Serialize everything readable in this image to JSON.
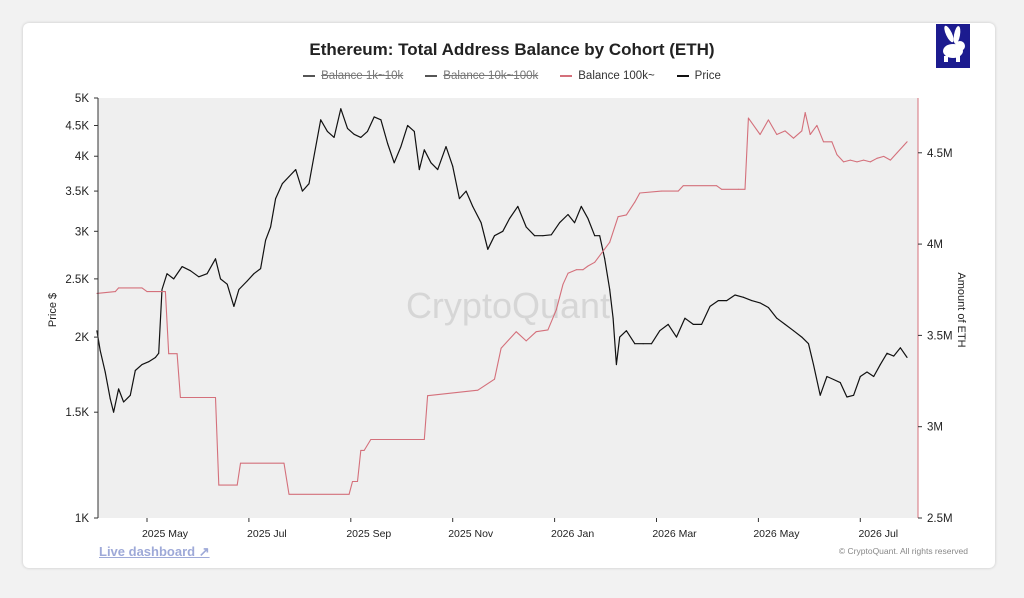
{
  "chart_data": {
    "type": "line",
    "title": "Ethereum: Total Address Balance by Cohort (ETH)",
    "legend": [
      {
        "label": "Balance 1k~10k",
        "color": "#555555",
        "hidden": true
      },
      {
        "label": "Balance 10k~100k",
        "color": "#555555",
        "hidden": true
      },
      {
        "label": "Balance 100k~",
        "color": "#d4707b",
        "hidden": false
      },
      {
        "label": "Price",
        "color": "#111111",
        "hidden": false
      }
    ],
    "watermark": "CryptoQuant",
    "x_axis": {
      "ticks": [
        "2025 May",
        "2025 Jul",
        "2025 Sep",
        "2025 Nov",
        "2026 Jan",
        "2026 Mar",
        "2026 May",
        "2026 Jul"
      ],
      "range": [
        "2025-04-01",
        "2026-07-31"
      ]
    },
    "y_left": {
      "label": "Price $",
      "scale": "log",
      "range": [
        1000,
        5000
      ],
      "ticks": [
        {
          "value": 1000,
          "label": "1K"
        },
        {
          "value": 1500,
          "label": "1.5K"
        },
        {
          "value": 2000,
          "label": "2K"
        },
        {
          "value": 2500,
          "label": "2.5K"
        },
        {
          "value": 3000,
          "label": "3K"
        },
        {
          "value": 3500,
          "label": "3.5K"
        },
        {
          "value": 4000,
          "label": "4K"
        },
        {
          "value": 4500,
          "label": "4.5K"
        },
        {
          "value": 5000,
          "label": "5K"
        }
      ]
    },
    "y_right": {
      "label": "Amount of ETH",
      "scale": "linear",
      "range": [
        2500000,
        4800000
      ],
      "ticks": [
        {
          "value": 2500000,
          "label": "2.5M"
        },
        {
          "value": 3000000,
          "label": "3M"
        },
        {
          "value": 3500000,
          "label": "3.5M"
        },
        {
          "value": 4000000,
          "label": "4M"
        },
        {
          "value": 4500000,
          "label": "4.5M"
        }
      ]
    },
    "series": [
      {
        "name": "Price",
        "axis": "left",
        "color": "#111111",
        "points": [
          [
            "2025-04-01",
            2050
          ],
          [
            "2025-04-03",
            1900
          ],
          [
            "2025-04-06",
            1750
          ],
          [
            "2025-04-09",
            1580
          ],
          [
            "2025-04-11",
            1500
          ],
          [
            "2025-04-14",
            1640
          ],
          [
            "2025-04-17",
            1560
          ],
          [
            "2025-04-21",
            1600
          ],
          [
            "2025-04-24",
            1760
          ],
          [
            "2025-04-28",
            1800
          ],
          [
            "2025-05-02",
            1820
          ],
          [
            "2025-05-06",
            1850
          ],
          [
            "2025-05-08",
            1880
          ],
          [
            "2025-05-10",
            2400
          ],
          [
            "2025-05-13",
            2550
          ],
          [
            "2025-05-17",
            2500
          ],
          [
            "2025-05-22",
            2620
          ],
          [
            "2025-05-27",
            2580
          ],
          [
            "2025-06-01",
            2520
          ],
          [
            "2025-06-06",
            2550
          ],
          [
            "2025-06-11",
            2700
          ],
          [
            "2025-06-14",
            2500
          ],
          [
            "2025-06-18",
            2450
          ],
          [
            "2025-06-22",
            2250
          ],
          [
            "2025-06-25",
            2400
          ],
          [
            "2025-06-30",
            2480
          ],
          [
            "2025-07-04",
            2550
          ],
          [
            "2025-07-08",
            2600
          ],
          [
            "2025-07-11",
            2900
          ],
          [
            "2025-07-14",
            3050
          ],
          [
            "2025-07-17",
            3400
          ],
          [
            "2025-07-21",
            3600
          ],
          [
            "2025-07-25",
            3700
          ],
          [
            "2025-07-29",
            3800
          ],
          [
            "2025-08-02",
            3500
          ],
          [
            "2025-08-06",
            3600
          ],
          [
            "2025-08-09",
            4000
          ],
          [
            "2025-08-13",
            4600
          ],
          [
            "2025-08-17",
            4400
          ],
          [
            "2025-08-21",
            4300
          ],
          [
            "2025-08-25",
            4800
          ],
          [
            "2025-08-29",
            4450
          ],
          [
            "2025-09-02",
            4350
          ],
          [
            "2025-09-06",
            4300
          ],
          [
            "2025-09-10",
            4400
          ],
          [
            "2025-09-14",
            4650
          ],
          [
            "2025-09-18",
            4600
          ],
          [
            "2025-09-22",
            4200
          ],
          [
            "2025-09-26",
            3900
          ],
          [
            "2025-09-30",
            4150
          ],
          [
            "2025-10-04",
            4500
          ],
          [
            "2025-10-08",
            4400
          ],
          [
            "2025-10-11",
            3800
          ],
          [
            "2025-10-14",
            4100
          ],
          [
            "2025-10-18",
            3900
          ],
          [
            "2025-10-22",
            3800
          ],
          [
            "2025-10-27",
            4150
          ],
          [
            "2025-10-31",
            3850
          ],
          [
            "2025-11-04",
            3400
          ],
          [
            "2025-11-08",
            3500
          ],
          [
            "2025-11-12",
            3300
          ],
          [
            "2025-11-17",
            3100
          ],
          [
            "2025-11-21",
            2800
          ],
          [
            "2025-11-25",
            2950
          ],
          [
            "2025-11-30",
            3000
          ],
          [
            "2025-12-04",
            3150
          ],
          [
            "2025-12-09",
            3300
          ],
          [
            "2025-12-14",
            3050
          ],
          [
            "2025-12-19",
            2950
          ],
          [
            "2025-12-24",
            2950
          ],
          [
            "2025-12-29",
            2960
          ],
          [
            "2026-01-03",
            3100
          ],
          [
            "2026-01-08",
            3200
          ],
          [
            "2026-01-12",
            3100
          ],
          [
            "2026-01-16",
            3300
          ],
          [
            "2026-01-20",
            3150
          ],
          [
            "2026-01-24",
            2950
          ],
          [
            "2026-01-27",
            2950
          ],
          [
            "2026-01-30",
            2700
          ],
          [
            "2026-02-02",
            2400
          ],
          [
            "2026-02-04",
            2150
          ],
          [
            "2026-02-06",
            1800
          ],
          [
            "2026-02-08",
            2000
          ],
          [
            "2026-02-12",
            2050
          ],
          [
            "2026-02-17",
            1950
          ],
          [
            "2026-02-22",
            1950
          ],
          [
            "2026-02-27",
            1950
          ],
          [
            "2026-03-04",
            2050
          ],
          [
            "2026-03-09",
            2100
          ],
          [
            "2026-03-14",
            2000
          ],
          [
            "2026-03-19",
            2150
          ],
          [
            "2026-03-24",
            2100
          ],
          [
            "2026-03-29",
            2100
          ],
          [
            "2026-04-03",
            2250
          ],
          [
            "2026-04-08",
            2300
          ],
          [
            "2026-04-13",
            2300
          ],
          [
            "2026-04-18",
            2350
          ],
          [
            "2026-04-23",
            2330
          ],
          [
            "2026-04-28",
            2300
          ],
          [
            "2026-05-03",
            2280
          ],
          [
            "2026-05-08",
            2240
          ],
          [
            "2026-05-13",
            2150
          ],
          [
            "2026-05-18",
            2100
          ],
          [
            "2026-05-23",
            2050
          ],
          [
            "2026-05-28",
            2000
          ],
          [
            "2026-06-01",
            1950
          ],
          [
            "2026-06-04",
            1800
          ],
          [
            "2026-06-08",
            1600
          ],
          [
            "2026-06-12",
            1720
          ],
          [
            "2026-06-16",
            1700
          ],
          [
            "2026-06-20",
            1680
          ],
          [
            "2026-06-24",
            1590
          ],
          [
            "2026-06-28",
            1600
          ],
          [
            "2026-07-02",
            1720
          ],
          [
            "2026-07-06",
            1750
          ],
          [
            "2026-07-10",
            1720
          ],
          [
            "2026-07-14",
            1800
          ],
          [
            "2026-07-18",
            1880
          ],
          [
            "2026-07-22",
            1860
          ],
          [
            "2026-07-26",
            1920
          ],
          [
            "2026-07-30",
            1850
          ]
        ]
      },
      {
        "name": "Balance 100k~",
        "axis": "right",
        "color": "#d4707b",
        "points": [
          [
            "2025-04-01",
            3730000
          ],
          [
            "2025-04-12",
            3740000
          ],
          [
            "2025-04-14",
            3760000
          ],
          [
            "2025-04-28",
            3760000
          ],
          [
            "2025-05-01",
            3740000
          ],
          [
            "2025-05-12",
            3740000
          ],
          [
            "2025-05-14",
            3400000
          ],
          [
            "2025-05-19",
            3400000
          ],
          [
            "2025-05-21",
            3160000
          ],
          [
            "2025-06-11",
            3160000
          ],
          [
            "2025-06-13",
            2680000
          ],
          [
            "2025-06-24",
            2680000
          ],
          [
            "2025-06-26",
            2800000
          ],
          [
            "2025-07-22",
            2800000
          ],
          [
            "2025-07-25",
            2630000
          ],
          [
            "2025-08-30",
            2630000
          ],
          [
            "2025-09-01",
            2700000
          ],
          [
            "2025-09-04",
            2700000
          ],
          [
            "2025-09-06",
            2870000
          ],
          [
            "2025-09-08",
            2870000
          ],
          [
            "2025-09-12",
            2930000
          ],
          [
            "2025-10-14",
            2930000
          ],
          [
            "2025-10-16",
            3170000
          ],
          [
            "2025-11-15",
            3200000
          ],
          [
            "2025-11-25",
            3260000
          ],
          [
            "2025-11-29",
            3430000
          ],
          [
            "2025-12-08",
            3520000
          ],
          [
            "2025-12-14",
            3470000
          ],
          [
            "2025-12-20",
            3520000
          ],
          [
            "2025-12-27",
            3530000
          ],
          [
            "2026-01-01",
            3640000
          ],
          [
            "2026-01-05",
            3780000
          ],
          [
            "2026-01-08",
            3840000
          ],
          [
            "2026-01-13",
            3860000
          ],
          [
            "2026-01-17",
            3860000
          ],
          [
            "2026-01-20",
            3880000
          ],
          [
            "2026-01-24",
            3900000
          ],
          [
            "2026-02-02",
            4010000
          ],
          [
            "2026-02-07",
            4150000
          ],
          [
            "2026-02-12",
            4160000
          ],
          [
            "2026-02-17",
            4230000
          ],
          [
            "2026-02-20",
            4280000
          ],
          [
            "2026-03-05",
            4290000
          ],
          [
            "2026-03-15",
            4290000
          ],
          [
            "2026-03-18",
            4320000
          ],
          [
            "2026-04-07",
            4320000
          ],
          [
            "2026-04-10",
            4300000
          ],
          [
            "2026-04-20",
            4300000
          ],
          [
            "2026-04-24",
            4300000
          ],
          [
            "2026-04-26",
            4690000
          ],
          [
            "2026-05-03",
            4600000
          ],
          [
            "2026-05-08",
            4680000
          ],
          [
            "2026-05-13",
            4600000
          ],
          [
            "2026-05-18",
            4620000
          ],
          [
            "2026-05-23",
            4580000
          ],
          [
            "2026-05-28",
            4620000
          ],
          [
            "2026-05-30",
            4720000
          ],
          [
            "2026-06-02",
            4600000
          ],
          [
            "2026-06-06",
            4650000
          ],
          [
            "2026-06-10",
            4560000
          ],
          [
            "2026-06-15",
            4560000
          ],
          [
            "2026-06-18",
            4490000
          ],
          [
            "2026-06-22",
            4450000
          ],
          [
            "2026-06-26",
            4460000
          ],
          [
            "2026-06-30",
            4450000
          ],
          [
            "2026-07-04",
            4460000
          ],
          [
            "2026-07-08",
            4450000
          ],
          [
            "2026-07-12",
            4470000
          ],
          [
            "2026-07-16",
            4480000
          ],
          [
            "2026-07-20",
            4460000
          ],
          [
            "2026-07-24",
            4500000
          ],
          [
            "2026-07-28",
            4540000
          ],
          [
            "2026-07-30",
            4560000
          ]
        ]
      }
    ]
  },
  "footer": {
    "live_dashboard": "Live dashboard ↗",
    "copyright": "© CryptoQuant. All rights reserved"
  },
  "logo_icon": "rabbit-icon"
}
